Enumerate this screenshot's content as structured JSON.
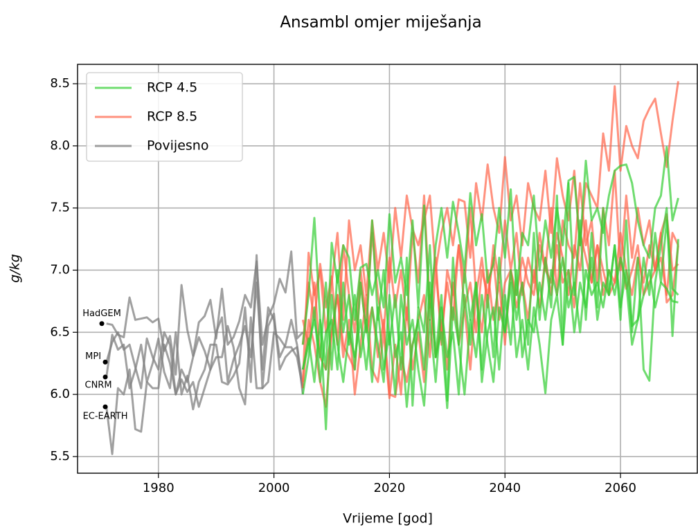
{
  "chart_data": {
    "type": "line",
    "title": "Ansambl omjer miješanja",
    "xlabel": "Vrijeme [god]",
    "ylabel": "g/kg",
    "xlim": [
      1966,
      2073.3
    ],
    "ylim": [
      5.366,
      8.656
    ],
    "xticks": [
      1980,
      2000,
      2020,
      2040,
      2060
    ],
    "yticks": [
      5.5,
      {
        "value": 6,
        "label": "6.0"
      },
      6.5,
      {
        "value": 7,
        "label": "7.0"
      },
      7.5,
      {
        "value": 8,
        "label": "8.0"
      },
      8.5
    ],
    "grid": true,
    "legend": "upper left",
    "series": [
      {
        "name": "RCP 4.5",
        "color": "#32cd32",
        "alpha": 0.7,
        "x": [
          2005,
          2006,
          2007,
          2008,
          2009,
          2010,
          2011,
          2012,
          2013,
          2014,
          2015,
          2016,
          2017,
          2018,
          2019,
          2020,
          2021,
          2022,
          2023,
          2024,
          2025,
          2026,
          2027,
          2028,
          2029,
          2030,
          2031,
          2032,
          2033,
          2034,
          2035,
          2036,
          2037,
          2038,
          2039,
          2040,
          2041,
          2042,
          2043,
          2044,
          2045,
          2046,
          2047,
          2048,
          2049,
          2050,
          2051,
          2052,
          2053,
          2054,
          2055,
          2056,
          2057,
          2058,
          2059,
          2060,
          2061,
          2062,
          2063,
          2064,
          2065,
          2066,
          2067,
          2068,
          2069,
          2070
        ],
        "values": [
          [
            6.4,
            6.8,
            7.42,
            6.6,
            6.2,
            7.22,
            6.9,
            7.2,
            7.1,
            6.6,
            7.02,
            7.05,
            6.8,
            7.0,
            6.7,
            7.45,
            6.9,
            7.1,
            6.8,
            7.4,
            6.7,
            7.52,
            6.6,
            7.2,
            7.5,
            7.1,
            7.55,
            7.3,
            7.0,
            7.62,
            7.2,
            7.45,
            6.9,
            7.05,
            7.5,
            7.1,
            7.65,
            6.8,
            7.3,
            7.2,
            7.6,
            7.0,
            7.4,
            7.1,
            7.5,
            7.2,
            7.72,
            7.75,
            7.2,
            7.88,
            7.4,
            7.5,
            7.3,
            7.6,
            7.8,
            7.84,
            7.85,
            7.7,
            7.4,
            7.2,
            7.1,
            7.5,
            7.6,
            7.99,
            7.4,
            7.58
          ],
          [
            6.2,
            6.45,
            6.1,
            6.6,
            5.72,
            6.8,
            6.4,
            6.1,
            6.5,
            6.3,
            6.6,
            6.2,
            6.7,
            6.4,
            6.1,
            6.8,
            6.3,
            6.5,
            5.9,
            6.4,
            6.6,
            6.2,
            6.9,
            6.3,
            6.5,
            5.89,
            6.7,
            6.4,
            6.0,
            6.6,
            6.3,
            6.8,
            6.4,
            6.1,
            6.7,
            6.5,
            6.9,
            6.3,
            6.6,
            6.2,
            6.7,
            6.4,
            6.01,
            6.6,
            6.8,
            6.4,
            7.0,
            6.5,
            6.9,
            6.7,
            7.1,
            6.6,
            6.9,
            6.8,
            7.2,
            6.7,
            7.0,
            6.55,
            6.6,
            7.1,
            6.8,
            7.3,
            6.9,
            7.4,
            6.85,
            6.8
          ],
          [
            6.2,
            6.4,
            6.6,
            6.3,
            6.9,
            6.2,
            7.0,
            6.5,
            6.8,
            6.2,
            6.9,
            6.5,
            7.4,
            6.6,
            7.0,
            6.4,
            6.8,
            6.2,
            7.1,
            5.91,
            6.7,
            6.5,
            7.2,
            6.3,
            6.8,
            5.95,
            7.1,
            6.4,
            7.0,
            6.6,
            6.9,
            6.2,
            6.8,
            6.3,
            7.1,
            6.5,
            7.0,
            6.6,
            6.9,
            6.4,
            7.3,
            6.6,
            7.1,
            6.7,
            7.6,
            6.4,
            7.7,
            6.8,
            7.4,
            6.6,
            7.3,
            6.7,
            7.5,
            6.8,
            7.2,
            6.6,
            7.4,
            6.5,
            7.1,
            6.2,
            6.11,
            6.9,
            7.2,
            7.5,
            6.47,
            7.25
          ],
          [
            6.0,
            6.3,
            6.7,
            6.1,
            6.5,
            6.6,
            6.2,
            6.9,
            6.4,
            6.8,
            6.3,
            6.6,
            6.1,
            6.7,
            6.2,
            6.5,
            6.0,
            6.8,
            6.4,
            6.6,
            6.2,
            5.91,
            6.6,
            6.1,
            6.7,
            6.3,
            6.5,
            6.0,
            6.8,
            6.4,
            6.9,
            6.1,
            6.5,
            6.7,
            6.2,
            6.8,
            6.4,
            7.0,
            6.3,
            6.6,
            6.5,
            6.9,
            6.6,
            7.0,
            6.8,
            7.1,
            6.7,
            6.9,
            6.5,
            7.0,
            6.8,
            6.9,
            6.7,
            7.0,
            6.8,
            7.1,
            6.9,
            6.4,
            6.6,
            6.8,
            7.0,
            6.7,
            6.9,
            6.85,
            6.75,
            6.74
          ]
        ]
      },
      {
        "name": "RCP 8.5",
        "color": "#ff6347",
        "alpha": 0.7,
        "x": [
          2005,
          2006,
          2007,
          2008,
          2009,
          2010,
          2011,
          2012,
          2013,
          2014,
          2015,
          2016,
          2017,
          2018,
          2019,
          2020,
          2021,
          2022,
          2023,
          2024,
          2025,
          2026,
          2027,
          2028,
          2029,
          2030,
          2031,
          2032,
          2033,
          2034,
          2035,
          2036,
          2037,
          2038,
          2039,
          2040,
          2041,
          2042,
          2043,
          2044,
          2045,
          2046,
          2047,
          2048,
          2049,
          2050,
          2051,
          2052,
          2053,
          2054,
          2055,
          2056,
          2057,
          2058,
          2059,
          2060,
          2061,
          2062,
          2063,
          2064,
          2065,
          2066,
          2067,
          2068,
          2069,
          2070
        ],
        "values": [
          [
            6.1,
            7.14,
            6.8,
            7.0,
            6.5,
            6.9,
            7.3,
            6.6,
            7.4,
            7.0,
            7.2,
            6.8,
            7.4,
            7.0,
            7.3,
            6.9,
            7.5,
            7.1,
            7.6,
            7.33,
            7.2,
            7.4,
            7.6,
            7.0,
            7.3,
            7.5,
            7.2,
            7.57,
            7.55,
            7.1,
            7.7,
            7.4,
            7.85,
            7.5,
            7.3,
            7.91,
            7.4,
            7.6,
            7.2,
            7.7,
            7.5,
            7.4,
            7.8,
            7.3,
            7.9,
            7.6,
            7.4,
            7.8,
            7.2,
            7.7,
            7.6,
            7.5,
            8.1,
            7.8,
            8.48,
            7.8,
            8.16,
            8.0,
            7.9,
            8.2,
            8.3,
            8.38,
            8.1,
            7.83,
            8.2,
            8.52
          ],
          [
            6.4,
            6.9,
            6.6,
            7.05,
            6.7,
            6.95,
            6.4,
            7.2,
            6.8,
            6.5,
            7.0,
            6.6,
            7.3,
            6.8,
            6.5,
            7.1,
            6.7,
            7.0,
            6.6,
            7.3,
            6.9,
            7.6,
            6.7,
            7.1,
            6.4,
            7.0,
            6.8,
            7.2,
            6.9,
            7.5,
            6.8,
            7.1,
            6.7,
            7.2,
            6.9,
            7.4,
            7.0,
            7.3,
            6.8,
            7.1,
            6.9,
            7.3,
            7.0,
            7.5,
            6.8,
            7.4,
            7.2,
            7.1,
            7.7,
            7.2,
            7.4,
            6.9,
            7.5,
            7.2,
            7.8,
            7.0,
            7.6,
            7.1,
            7.5,
            7.2,
            7.4,
            7.0,
            7.3,
            7.45,
            7.0,
            7.05
          ],
          [
            6.05,
            6.6,
            6.4,
            6.1,
            5.9,
            6.5,
            6.8,
            6.3,
            6.6,
            6.0,
            6.4,
            6.8,
            6.2,
            6.1,
            6.5,
            5.97,
            6.4,
            6.0,
            6.7,
            6.2,
            6.5,
            6.1,
            6.8,
            6.3,
            6.6,
            6.2,
            6.9,
            6.4,
            6.7,
            6.2,
            6.8,
            6.5,
            7.0,
            6.6,
            6.9,
            6.4,
            7.0,
            6.7,
            6.9,
            6.6,
            7.0,
            6.7,
            7.1,
            6.8,
            7.2,
            6.9,
            7.0,
            6.7,
            7.3,
            7.1,
            6.9,
            7.2,
            6.8,
            7.0,
            6.9,
            7.3,
            7.0,
            6.8,
            7.1,
            6.9,
            7.2,
            7.0,
            7.3,
            6.74,
            6.8,
            7.2
          ],
          [
            6.6,
            6.4,
            6.9,
            6.3,
            6.2,
            6.5,
            6.8,
            6.4,
            6.3,
            6.2,
            6.9,
            6.5,
            6.7,
            6.3,
            6.6,
            6.0,
            5.98,
            6.3,
            6.1,
            6.4,
            6.6,
            6.8,
            6.3,
            7.0,
            6.5,
            6.9,
            6.6,
            7.2,
            6.7,
            6.9,
            6.5,
            7.0,
            6.8,
            7.1,
            6.6,
            6.9,
            7.0,
            6.8,
            7.1,
            6.9,
            6.8,
            7.2,
            7.0,
            6.9,
            7.3,
            7.1,
            6.8,
            7.2,
            7.0,
            7.4,
            6.9,
            7.2,
            7.0,
            6.8,
            6.9,
            7.1,
            6.85,
            7.0,
            7.2,
            6.8,
            6.9,
            7.0,
            7.1,
            6.8,
            7.3,
            7.2
          ]
        ]
      },
      {
        "name": "Povijesno",
        "color": "#808080",
        "alpha": 0.75,
        "x": [
          1971,
          1972,
          1973,
          1974,
          1975,
          1976,
          1977,
          1978,
          1979,
          1980,
          1981,
          1982,
          1983,
          1984,
          1985,
          1986,
          1987,
          1988,
          1989,
          1990,
          1991,
          1992,
          1993,
          1994,
          1995,
          1996,
          1997,
          1998,
          1999,
          2000,
          2001,
          2002,
          2003,
          2004,
          2005
        ],
        "values": [
          [
            6.57,
            6.56,
            6.48,
            6.46,
            6.78,
            6.6,
            6.61,
            6.62,
            6.58,
            6.61,
            6.35,
            6.47,
            6.16,
            6.88,
            6.52,
            6.31,
            6.58,
            6.63,
            6.76,
            6.45,
            6.85,
            6.4,
            6.46,
            6.59,
            6.8,
            6.7,
            7.07,
            6.4,
            6.62,
            6.73,
            6.93,
            6.82,
            7.15,
            6.45,
            6.5
          ],
          [
            6.26,
            6.42,
            6.5,
            6.36,
            6.4,
            6.22,
            6.05,
            6.45,
            6.3,
            6.2,
            6.5,
            6.4,
            6.0,
            6.2,
            6.1,
            6.3,
            6.46,
            6.35,
            6.2,
            6.5,
            6.62,
            6.1,
            6.28,
            6.4,
            6.55,
            6.3,
            6.9,
            6.2,
            6.7,
            6.6,
            6.3,
            6.4,
            6.6,
            6.4,
            6.05
          ],
          [
            6.14,
            6.48,
            6.36,
            6.4,
            6.05,
            6.2,
            6.4,
            6.1,
            6.25,
            6.45,
            6.18,
            6.05,
            6.5,
            6.0,
            6.15,
            5.88,
            6.1,
            6.2,
            6.4,
            6.4,
            6.1,
            6.08,
            6.15,
            6.25,
            6.7,
            6.1,
            7.12,
            6.05,
            6.55,
            6.65,
            6.2,
            6.3,
            6.35,
            6.38,
            6.0
          ],
          [
            5.9,
            5.52,
            6.05,
            6.0,
            6.2,
            5.72,
            5.7,
            6.1,
            6.05,
            6.05,
            6.4,
            6.25,
            6.0,
            6.12,
            6.02,
            6.1,
            5.9,
            6.05,
            6.2,
            6.3,
            6.3,
            6.55,
            6.38,
            6.05,
            5.92,
            6.62,
            6.05,
            6.05,
            6.1,
            6.5,
            6.45,
            6.38,
            6.38,
            6.3,
            6.05
          ]
        ]
      }
    ],
    "annotations": [
      {
        "text": "HadGEM",
        "x": 1970.2,
        "y": 6.57
      },
      {
        "text": "MPI",
        "x": 1970.8,
        "y": 6.26
      },
      {
        "text": "CNRM",
        "x": 1970.8,
        "y": 6.14
      },
      {
        "text": "EC-EARTH",
        "x": 1970.8,
        "y": 5.9
      }
    ]
  }
}
